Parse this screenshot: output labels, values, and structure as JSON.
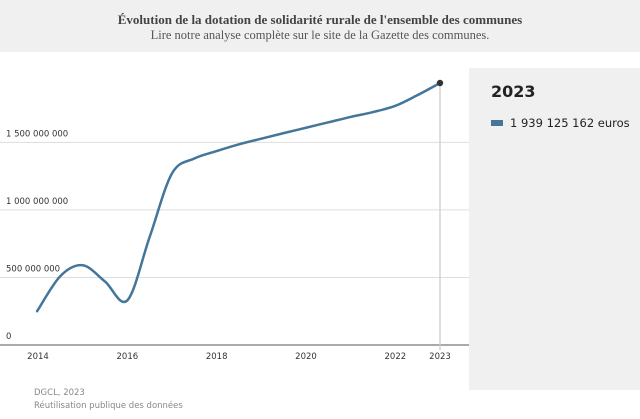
{
  "header": {
    "title": "Évolution de la dotation de solidarité rurale de l'ensemble des communes",
    "subtitle": "Lire notre analyse complète sur le site de la Gazette des communes."
  },
  "panel": {
    "year": "2023",
    "value_label": "1 939 125 162 euros"
  },
  "footer": {
    "source": "DGCL, 2023",
    "reuse": "Réutilisation publique des données"
  },
  "colors": {
    "line": "#44769b",
    "grid": "#dddddd",
    "panel_bg": "#f0f0f0",
    "marker": "#333333",
    "cursor_line": "#cccccc"
  },
  "chart_data": {
    "type": "line",
    "x_ticks": [
      "2014",
      "2016",
      "2018",
      "2020",
      "2022",
      "2023"
    ],
    "y_ticks": [
      "0",
      "500 000 000",
      "1 000 000 000",
      "1 500 000 000"
    ],
    "y_tick_values": [
      0,
      500000000,
      1000000000,
      1500000000
    ],
    "xlim": [
      2014,
      2023
    ],
    "ylim": [
      0,
      1939125162
    ],
    "grid": true,
    "highlight": {
      "x": 2023,
      "y": 1939125162
    },
    "series": [
      {
        "values": [
          [
            2013.98,
            250000000
          ],
          [
            2014.5,
            510000000
          ],
          [
            2015.0,
            590000000
          ],
          [
            2015.5,
            470000000
          ],
          [
            2016.0,
            330000000
          ],
          [
            2016.5,
            800000000
          ],
          [
            2017.0,
            1270000000
          ],
          [
            2017.5,
            1380000000
          ],
          [
            2018.0,
            1435000000
          ],
          [
            2018.5,
            1485000000
          ],
          [
            2019.0,
            1527000000
          ],
          [
            2019.5,
            1568000000
          ],
          [
            2020.0,
            1608000000
          ],
          [
            2020.5,
            1648000000
          ],
          [
            2021.0,
            1688000000
          ],
          [
            2021.5,
            1724000000
          ],
          [
            2022.0,
            1770000000
          ],
          [
            2022.5,
            1850000000
          ],
          [
            2023.0,
            1939125162
          ]
        ]
      }
    ]
  }
}
